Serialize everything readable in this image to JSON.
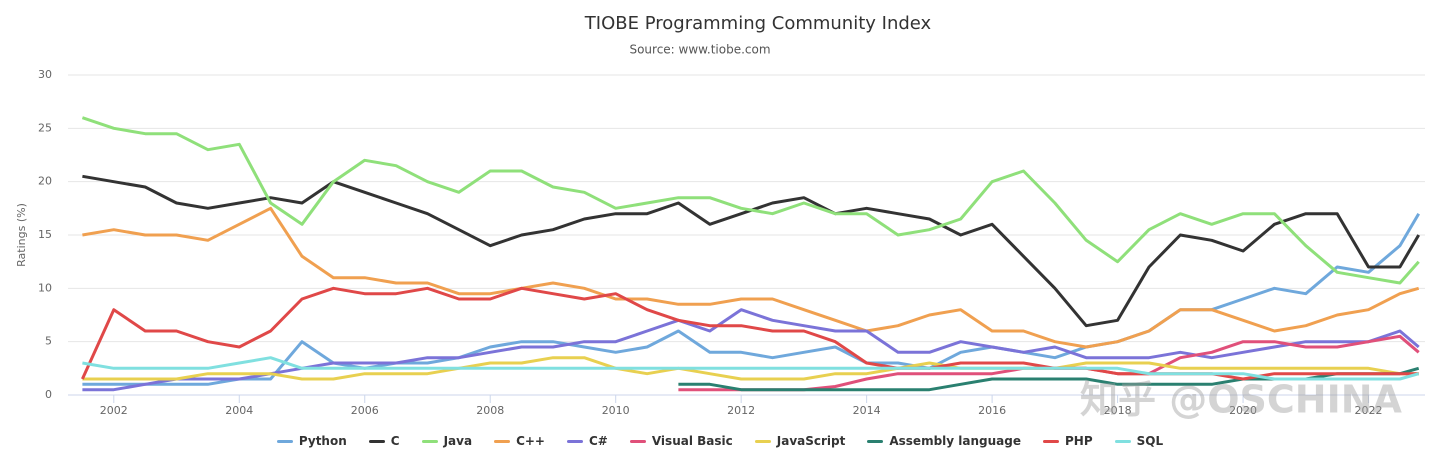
{
  "chart_data": {
    "type": "line",
    "title": "TIOBE Programming Community Index",
    "subtitle": "Source: www.tiobe.com",
    "y_label": "Ratings (%)",
    "watermark": "知乎 @OSCHINA",
    "x": [
      2001.5,
      2002,
      2002.5,
      2003,
      2003.5,
      2004,
      2004.5,
      2005,
      2005.5,
      2006,
      2006.5,
      2007,
      2007.5,
      2008,
      2008.5,
      2009,
      2009.5,
      2010,
      2010.5,
      2011,
      2011.5,
      2012,
      2012.5,
      2013,
      2013.5,
      2014,
      2014.5,
      2015,
      2015.5,
      2016,
      2016.5,
      2017,
      2017.5,
      2018,
      2018.5,
      2019,
      2019.5,
      2020,
      2020.5,
      2021,
      2021.5,
      2022,
      2022.5,
      2022.8
    ],
    "xlim": [
      2001.27,
      2022.9
    ],
    "xticks": [
      2002,
      2004,
      2006,
      2008,
      2010,
      2012,
      2014,
      2016,
      2018,
      2020,
      2022
    ],
    "ylim": [
      0,
      30
    ],
    "yticks": [
      0,
      5,
      10,
      15,
      20,
      25,
      30
    ],
    "grid": true,
    "series": [
      {
        "name": "Python",
        "color": "#6fa8dc",
        "values": [
          1,
          1,
          1,
          1,
          1,
          1.5,
          1.5,
          5,
          3,
          2.5,
          3,
          3,
          3.5,
          4.5,
          5,
          5,
          4.5,
          4,
          4.5,
          6,
          4,
          4,
          3.5,
          4,
          4.5,
          3,
          3,
          2.5,
          4,
          4.5,
          4,
          3.5,
          4.5,
          5,
          6,
          8,
          8,
          9,
          10,
          9.5,
          12,
          11.5,
          14,
          17
        ]
      },
      {
        "name": "C",
        "color": "#333333",
        "values": [
          20.5,
          20,
          19.5,
          18,
          17.5,
          18,
          18.5,
          18,
          20,
          19,
          18,
          17,
          15.5,
          14,
          15,
          15.5,
          16.5,
          17,
          17,
          18,
          16,
          17,
          18,
          18.5,
          17,
          17.5,
          17,
          16.5,
          15,
          16,
          13,
          10,
          6.5,
          7,
          12,
          15,
          14.5,
          13.5,
          16,
          17,
          17,
          12,
          12,
          15
        ]
      },
      {
        "name": "Java",
        "color": "#8fe07a",
        "values": [
          26,
          25,
          24.5,
          24.5,
          23,
          23.5,
          18,
          16,
          20,
          22,
          21.5,
          20,
          19,
          21,
          21,
          19.5,
          19,
          17.5,
          18,
          18.5,
          18.5,
          17.5,
          17,
          18,
          17,
          17,
          15,
          15.5,
          16.5,
          20,
          21,
          18,
          14.5,
          12.5,
          15.5,
          17,
          16,
          17,
          17,
          14,
          11.5,
          11,
          10.5,
          12.5
        ]
      },
      {
        "name": "C++",
        "color": "#f0a050",
        "values": [
          15,
          15.5,
          15,
          15,
          14.5,
          16,
          17.5,
          13,
          11,
          11,
          10.5,
          10.5,
          9.5,
          9.5,
          10,
          10.5,
          10,
          9,
          9,
          8.5,
          8.5,
          9,
          9,
          8,
          7,
          6,
          6.5,
          7.5,
          8,
          6,
          6,
          5,
          4.5,
          5,
          6,
          8,
          8,
          7,
          6,
          6.5,
          7.5,
          8,
          9.5,
          10
        ]
      },
      {
        "name": "C#",
        "color": "#7b73d8",
        "values": [
          0.5,
          0.5,
          1,
          1.5,
          1.5,
          1.5,
          2,
          2.5,
          3,
          3,
          3,
          3.5,
          3.5,
          4,
          4.5,
          4.5,
          5,
          5,
          6,
          7,
          6,
          8,
          7,
          6.5,
          6,
          6,
          4,
          4,
          5,
          4.5,
          4,
          4.5,
          3.5,
          3.5,
          3.5,
          4,
          3.5,
          4,
          4.5,
          5,
          5,
          5,
          6,
          4.5
        ]
      },
      {
        "name": "Visual Basic",
        "color": "#e0507a",
        "values": [
          null,
          null,
          null,
          null,
          null,
          null,
          null,
          null,
          null,
          null,
          null,
          null,
          null,
          null,
          null,
          null,
          null,
          null,
          null,
          0.5,
          0.5,
          0.5,
          0.5,
          0.5,
          0.8,
          1.5,
          2,
          2,
          2,
          2,
          2.5,
          2.5,
          2.5,
          2,
          2,
          3.5,
          4,
          5,
          5,
          4.5,
          4.5,
          5,
          5.5,
          4
        ]
      },
      {
        "name": "JavaScript",
        "color": "#e8d050",
        "values": [
          1.5,
          1.5,
          1.5,
          1.5,
          2,
          2,
          2,
          1.5,
          1.5,
          2,
          2,
          2,
          2.5,
          3,
          3,
          3.5,
          3.5,
          2.5,
          2,
          2.5,
          2,
          1.5,
          1.5,
          1.5,
          2,
          2,
          2.5,
          3,
          2.5,
          2.5,
          2.5,
          2.5,
          3,
          3,
          3,
          2.5,
          2.5,
          2.5,
          2.5,
          2.5,
          2.5,
          2.5,
          2,
          2
        ]
      },
      {
        "name": "Assembly language",
        "color": "#2a8070",
        "values": [
          null,
          null,
          null,
          null,
          null,
          null,
          null,
          null,
          null,
          null,
          null,
          null,
          null,
          null,
          null,
          null,
          null,
          null,
          null,
          1,
          1,
          0.5,
          0.5,
          0.5,
          0.5,
          0.5,
          0.5,
          0.5,
          1,
          1.5,
          1.5,
          1.5,
          1.5,
          1,
          1,
          1,
          1,
          1.5,
          1.5,
          1.5,
          2,
          2,
          2,
          2.5
        ]
      },
      {
        "name": "PHP",
        "color": "#e04848",
        "values": [
          1.5,
          8,
          6,
          6,
          5,
          4.5,
          6,
          9,
          10,
          9.5,
          9.5,
          10,
          9,
          9,
          10,
          9.5,
          9,
          9.5,
          8,
          7,
          6.5,
          6.5,
          6,
          6,
          5,
          3,
          2.5,
          2.5,
          3,
          3,
          3,
          2.5,
          2.5,
          2,
          2,
          2,
          2,
          1.5,
          2,
          2,
          2,
          2,
          2,
          2
        ]
      },
      {
        "name": "SQL",
        "color": "#80e0e0",
        "values": [
          3,
          2.5,
          2.5,
          2.5,
          2.5,
          3,
          3.5,
          2.5,
          2.5,
          2.5,
          2.5,
          2.5,
          2.5,
          2.5,
          2.5,
          2.5,
          2.5,
          2.5,
          2.5,
          2.5,
          2.5,
          2.5,
          2.5,
          2.5,
          2.5,
          2.5,
          2.5,
          2.5,
          2.5,
          2.5,
          2.5,
          2.5,
          2.5,
          2.5,
          2,
          2,
          2,
          2,
          1.5,
          1.5,
          1.5,
          1.5,
          1.5,
          2
        ]
      }
    ]
  }
}
